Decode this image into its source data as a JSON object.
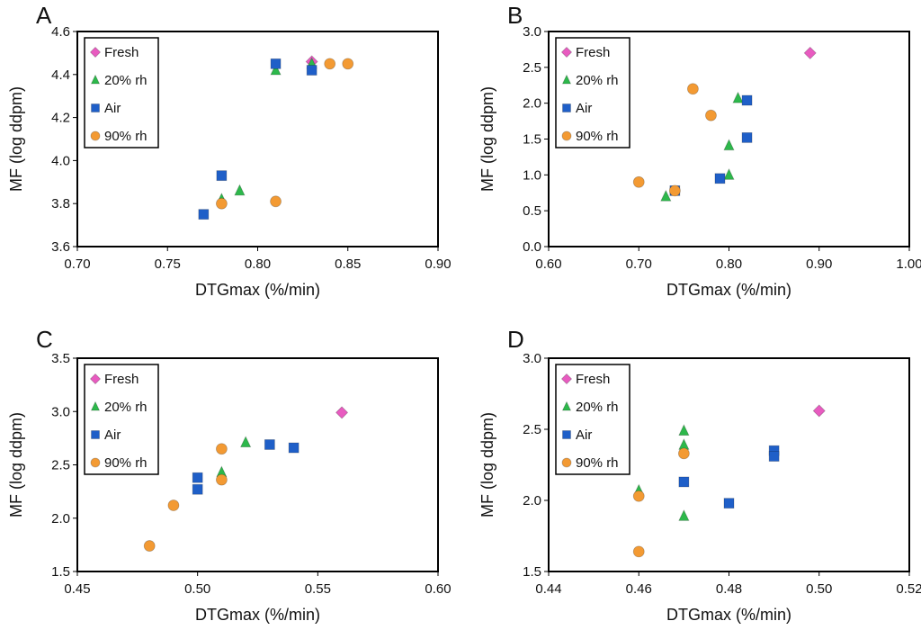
{
  "series_styles": {
    "Fresh": {
      "marker": "diamond",
      "color": "#E85BC0"
    },
    "20% rh": {
      "marker": "triangle",
      "color": "#2DB84B"
    },
    "Air": {
      "marker": "square",
      "color": "#1F5FC8"
    },
    "90% rh": {
      "marker": "circle",
      "color": "#F39A33"
    }
  },
  "chart_data": [
    {
      "panel": "A",
      "type": "scatter",
      "title": "A",
      "xlabel": "DTGmax (%/min)",
      "ylabel": "MF (log ddpm)",
      "xlim": [
        0.7,
        0.9
      ],
      "ylim": [
        3.6,
        4.6
      ],
      "xticks": [
        "0.70",
        "0.75",
        "0.80",
        "0.85",
        "0.90"
      ],
      "yticks": [
        "3.6",
        "3.8",
        "4.0",
        "4.2",
        "4.4",
        "4.6"
      ],
      "legend": [
        "Fresh",
        "20% rh",
        "Air",
        "90% rh"
      ],
      "legend_position": "top-left",
      "grid": false,
      "series": [
        {
          "name": "Fresh",
          "points": [
            [
              0.83,
              4.46
            ]
          ]
        },
        {
          "name": "20% rh",
          "points": [
            [
              0.81,
              4.42
            ],
            [
              0.83,
              4.45
            ],
            [
              0.78,
              3.82
            ],
            [
              0.79,
              3.86
            ]
          ]
        },
        {
          "name": "Air",
          "points": [
            [
              0.81,
              4.45
            ],
            [
              0.83,
              4.42
            ],
            [
              0.78,
              3.93
            ],
            [
              0.77,
              3.75
            ]
          ]
        },
        {
          "name": "90% rh",
          "points": [
            [
              0.84,
              4.45
            ],
            [
              0.85,
              4.45
            ],
            [
              0.78,
              3.8
            ],
            [
              0.81,
              3.81
            ]
          ]
        }
      ]
    },
    {
      "panel": "B",
      "type": "scatter",
      "title": "B",
      "xlabel": "DTGmax (%/min)",
      "ylabel": "MF (log ddpm)",
      "xlim": [
        0.6,
        1.0
      ],
      "ylim": [
        0.0,
        3.0
      ],
      "xticks": [
        "0.60",
        "0.70",
        "0.80",
        "0.90",
        "1.00"
      ],
      "yticks": [
        "0.0",
        "0.5",
        "1.0",
        "1.5",
        "2.0",
        "2.5",
        "3.0"
      ],
      "legend": [
        "Fresh",
        "20% rh",
        "Air",
        "90% rh"
      ],
      "legend_position": "top-left",
      "grid": false,
      "series": [
        {
          "name": "Fresh",
          "points": [
            [
              0.89,
              2.7
            ]
          ]
        },
        {
          "name": "20% rh",
          "points": [
            [
              0.81,
              2.07
            ],
            [
              0.8,
              1.41
            ],
            [
              0.8,
              1.0
            ],
            [
              0.73,
              0.7
            ]
          ]
        },
        {
          "name": "Air",
          "points": [
            [
              0.82,
              2.04
            ],
            [
              0.82,
              1.52
            ],
            [
              0.79,
              0.95
            ],
            [
              0.74,
              0.78
            ]
          ]
        },
        {
          "name": "90% rh",
          "points": [
            [
              0.76,
              2.2
            ],
            [
              0.78,
              1.83
            ],
            [
              0.7,
              0.9
            ],
            [
              0.74,
              0.78
            ]
          ]
        }
      ]
    },
    {
      "panel": "C",
      "type": "scatter",
      "title": "C",
      "xlabel": "DTGmax (%/min)",
      "ylabel": "MF (log ddpm)",
      "xlim": [
        0.45,
        0.6
      ],
      "ylim": [
        1.5,
        3.5
      ],
      "xticks": [
        "0.45",
        "0.50",
        "0.55",
        "0.60"
      ],
      "yticks": [
        "1.5",
        "2.0",
        "2.5",
        "3.0",
        "3.5"
      ],
      "legend": [
        "Fresh",
        "20% rh",
        "Air",
        "90% rh"
      ],
      "legend_position": "top-left",
      "grid": false,
      "series": [
        {
          "name": "Fresh",
          "points": [
            [
              0.56,
              2.99
            ]
          ]
        },
        {
          "name": "20% rh",
          "points": [
            [
              0.52,
              2.71
            ],
            [
              0.51,
              2.43
            ]
          ]
        },
        {
          "name": "Air",
          "points": [
            [
              0.53,
              2.69
            ],
            [
              0.54,
              2.66
            ],
            [
              0.5,
              2.38
            ],
            [
              0.5,
              2.27
            ]
          ]
        },
        {
          "name": "90% rh",
          "points": [
            [
              0.51,
              2.65
            ],
            [
              0.51,
              2.36
            ],
            [
              0.49,
              2.12
            ],
            [
              0.48,
              1.74
            ]
          ]
        }
      ]
    },
    {
      "panel": "D",
      "type": "scatter",
      "title": "D",
      "xlabel": "DTGmax (%/min)",
      "ylabel": "MF (log ddpm)",
      "xlim": [
        0.44,
        0.52
      ],
      "ylim": [
        1.5,
        3.0
      ],
      "xticks": [
        "0.44",
        "0.46",
        "0.48",
        "0.50",
        "0.52"
      ],
      "yticks": [
        "1.5",
        "2.0",
        "2.5",
        "3.0"
      ],
      "legend": [
        "Fresh",
        "20% rh",
        "Air",
        "90% rh"
      ],
      "legend_position": "top-left",
      "grid": false,
      "series": [
        {
          "name": "Fresh",
          "points": [
            [
              0.5,
              2.63
            ]
          ]
        },
        {
          "name": "20% rh",
          "points": [
            [
              0.47,
              2.49
            ],
            [
              0.47,
              2.39
            ],
            [
              0.46,
              2.07
            ],
            [
              0.47,
              1.89
            ]
          ]
        },
        {
          "name": "Air",
          "points": [
            [
              0.49,
              2.35
            ],
            [
              0.49,
              2.31
            ],
            [
              0.47,
              2.13
            ],
            [
              0.48,
              1.98
            ]
          ]
        },
        {
          "name": "90% rh",
          "points": [
            [
              0.47,
              2.33
            ],
            [
              0.46,
              2.03
            ],
            [
              0.46,
              1.64
            ]
          ]
        }
      ]
    }
  ]
}
